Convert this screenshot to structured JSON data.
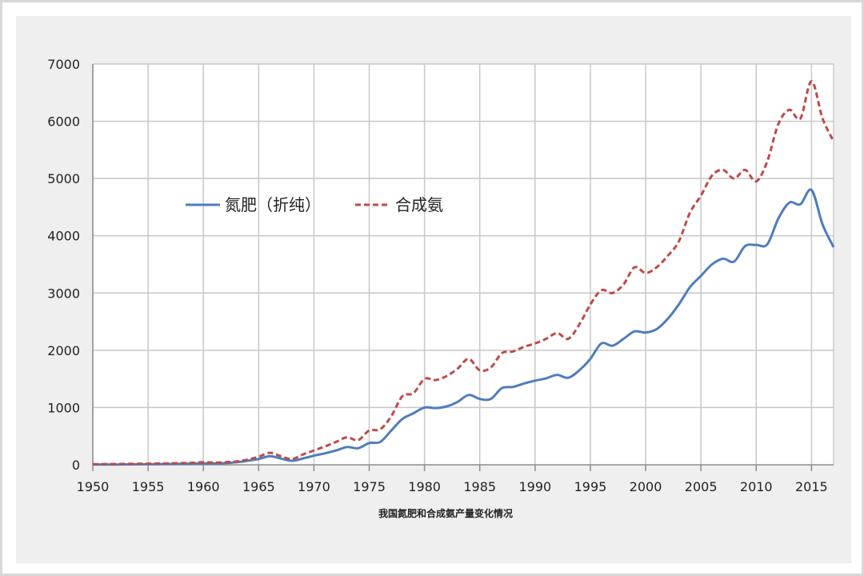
{
  "chart_data": {
    "type": "line",
    "title": "",
    "xlabel": "我国氮肥和合成氨产量变化情况",
    "ylabel": "",
    "xlim": [
      1950,
      2017
    ],
    "ylim": [
      0,
      7000
    ],
    "xticks": [
      "1950",
      "1955",
      "1960",
      "1965",
      "1970",
      "1975",
      "1980",
      "1985",
      "1990",
      "1995",
      "2000",
      "2005",
      "2010",
      "2015"
    ],
    "yticks": [
      "0",
      "1000",
      "2000",
      "3000",
      "4000",
      "5000",
      "6000",
      "7000"
    ],
    "grid": true,
    "legend_position": "upper-left",
    "x": [
      1950,
      1951,
      1952,
      1953,
      1954,
      1955,
      1956,
      1957,
      1958,
      1959,
      1960,
      1961,
      1962,
      1963,
      1964,
      1965,
      1966,
      1967,
      1968,
      1969,
      1970,
      1971,
      1972,
      1973,
      1974,
      1975,
      1976,
      1977,
      1978,
      1979,
      1980,
      1981,
      1982,
      1983,
      1984,
      1985,
      1986,
      1987,
      1988,
      1989,
      1990,
      1991,
      1992,
      1993,
      1994,
      1995,
      1996,
      1997,
      1998,
      1999,
      2000,
      2001,
      2002,
      2003,
      2004,
      2005,
      2006,
      2007,
      2008,
      2009,
      2010,
      2011,
      2012,
      2013,
      2014,
      2015,
      2016,
      2017
    ],
    "series": [
      {
        "name": "氮肥（折纯）",
        "color": "#4f7dbd",
        "style": "solid",
        "values": [
          5,
          5,
          6,
          7,
          8,
          10,
          12,
          15,
          18,
          22,
          25,
          25,
          30,
          45,
          70,
          100,
          150,
          110,
          70,
          110,
          160,
          200,
          250,
          310,
          290,
          380,
          400,
          600,
          800,
          900,
          1000,
          990,
          1020,
          1100,
          1220,
          1150,
          1150,
          1340,
          1360,
          1420,
          1470,
          1510,
          1570,
          1520,
          1650,
          1850,
          2120,
          2080,
          2200,
          2330,
          2310,
          2370,
          2550,
          2800,
          3100,
          3300,
          3500,
          3600,
          3550,
          3820,
          3840,
          3850,
          4300,
          4580,
          4550,
          4800,
          4200,
          3800
        ]
      },
      {
        "name": "合成氨",
        "color": "#be4b48",
        "style": "dashed",
        "values": [
          10,
          12,
          14,
          16,
          18,
          20,
          22,
          25,
          30,
          35,
          45,
          40,
          45,
          60,
          90,
          140,
          210,
          150,
          100,
          180,
          250,
          320,
          400,
          480,
          430,
          600,
          620,
          850,
          1200,
          1250,
          1500,
          1480,
          1550,
          1680,
          1850,
          1650,
          1700,
          1950,
          1980,
          2060,
          2120,
          2200,
          2300,
          2200,
          2450,
          2800,
          3050,
          3000,
          3150,
          3450,
          3350,
          3450,
          3650,
          3900,
          4400,
          4700,
          5050,
          5150,
          5000,
          5150,
          4950,
          5300,
          5950,
          6200,
          6050,
          6700,
          6050,
          5650
        ]
      }
    ]
  }
}
